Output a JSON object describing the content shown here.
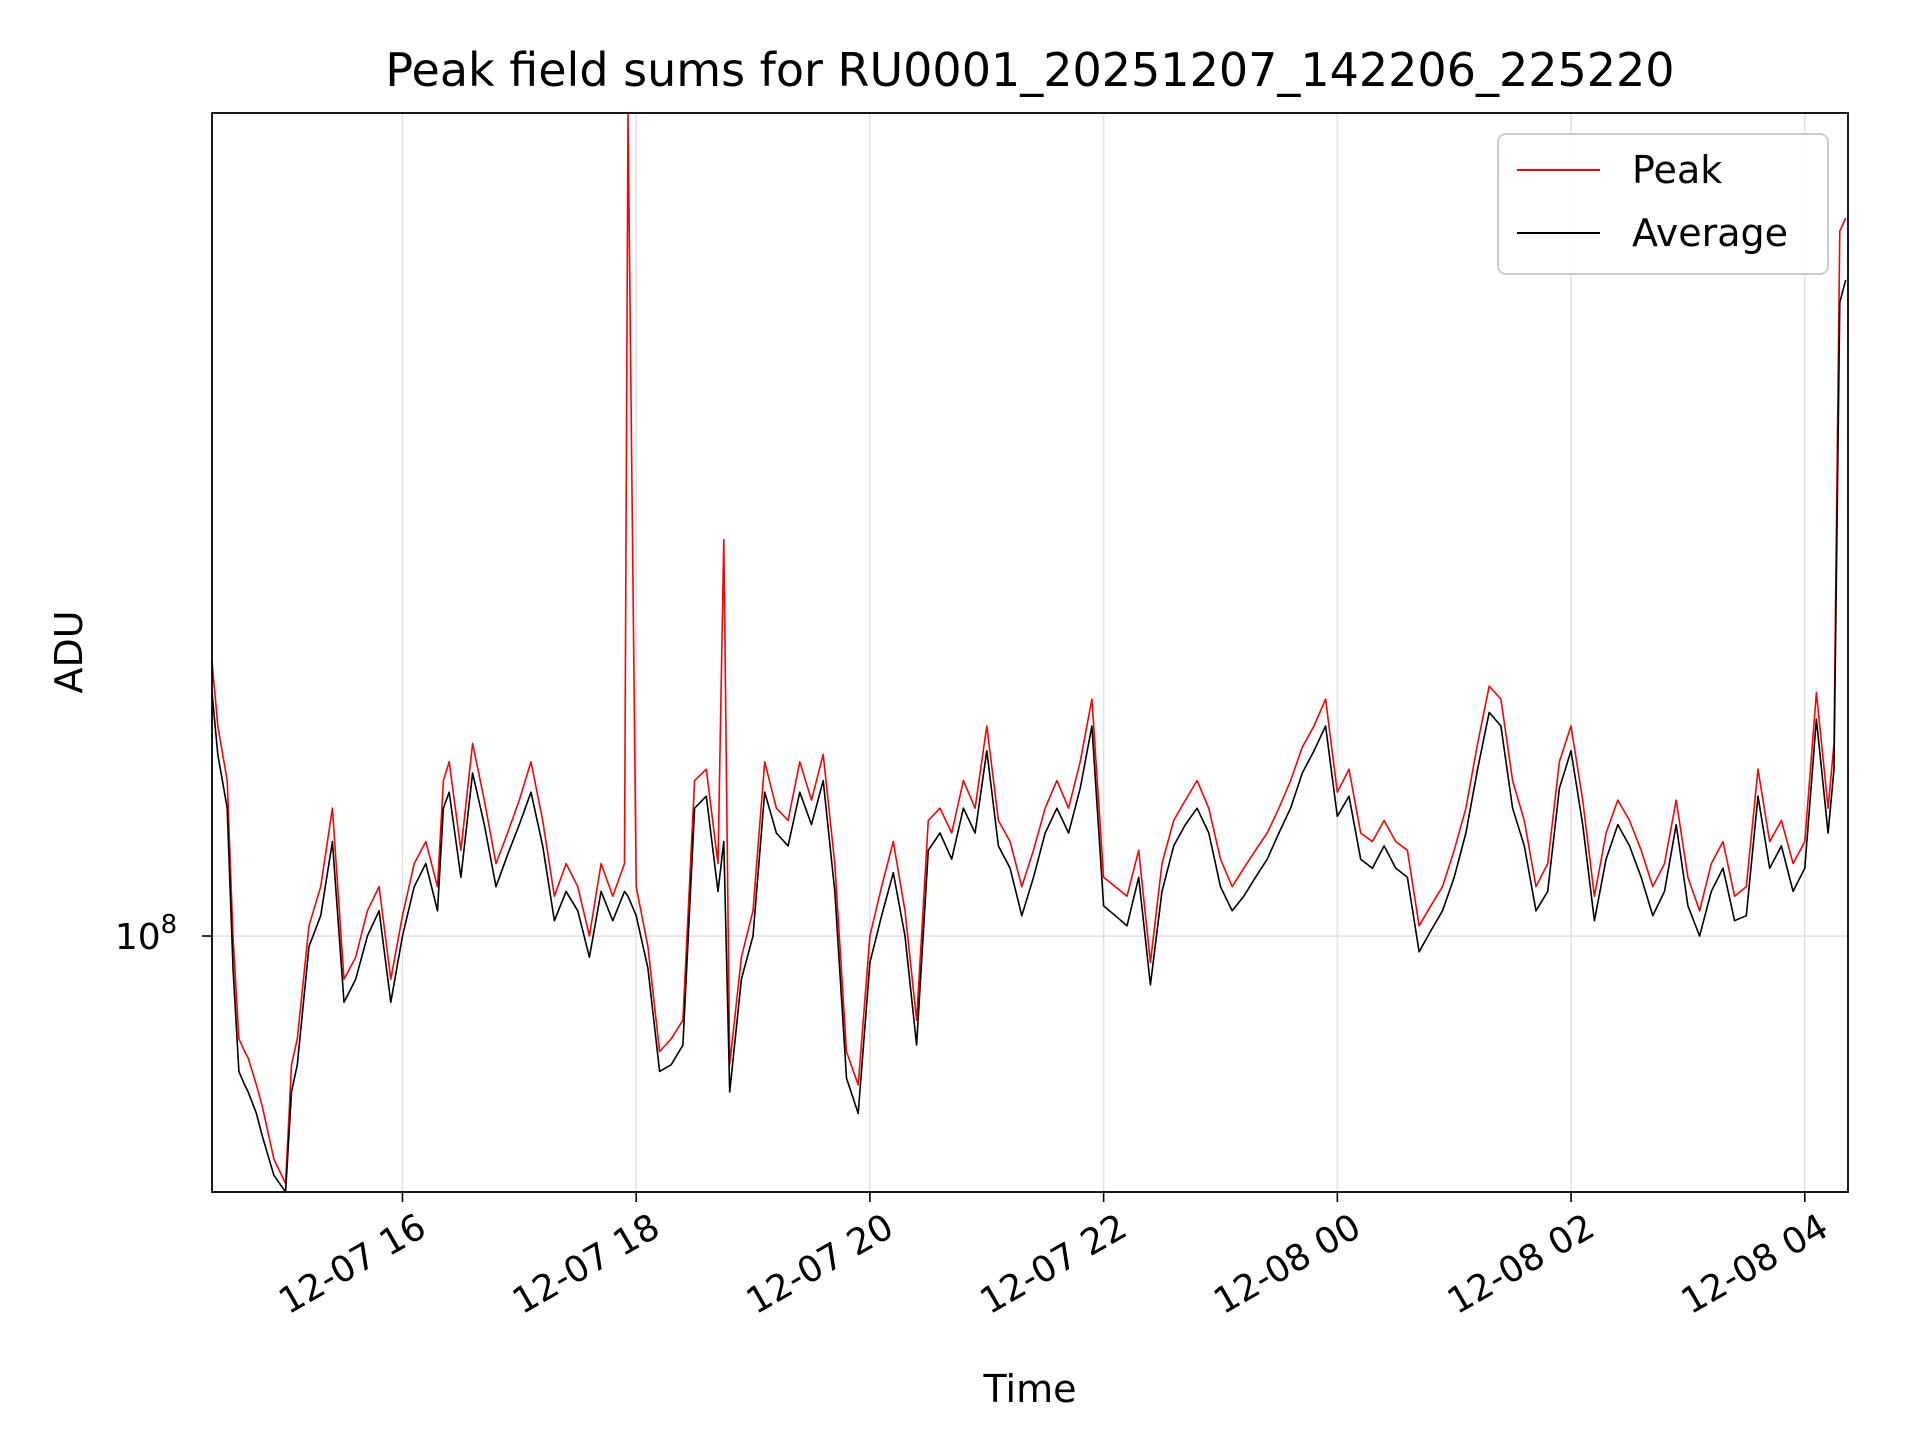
{
  "colors": {
    "peak": "#ff0000",
    "average": "#000000",
    "grid": "#e3e3e3"
  },
  "chart_data": {
    "type": "line",
    "title": "Peak field sums for RU0001_20251207_142206_225220",
    "xlabel": "Time",
    "ylabel": "ADU",
    "yscale": "log",
    "grid": true,
    "legend_position": "top-right",
    "x_unit": "hours since 12-07 00:00",
    "xlim": [
      14.37,
      28.37
    ],
    "ylim": [
      61000000,
      490000000
    ],
    "x_ticks": [
      {
        "value": 16,
        "label": "12-07 16"
      },
      {
        "value": 18,
        "label": "12-07 18"
      },
      {
        "value": 20,
        "label": "12-07 20"
      },
      {
        "value": 22,
        "label": "12-07 22"
      },
      {
        "value": 24,
        "label": "12-08 00"
      },
      {
        "value": 26,
        "label": "12-08 02"
      },
      {
        "value": 28,
        "label": "12-08 04"
      }
    ],
    "y_ticks": [
      {
        "value": 100000000,
        "base": "10",
        "exp": "8"
      }
    ],
    "series": [
      {
        "name": "Peak",
        "color": "#ff0000",
        "x": [
          14.37,
          14.42,
          14.5,
          14.55,
          14.6,
          14.65,
          14.68,
          14.75,
          14.8,
          14.9,
          15.0,
          15.05,
          15.1,
          15.2,
          15.3,
          15.4,
          15.5,
          15.6,
          15.7,
          15.8,
          15.9,
          16.0,
          16.1,
          16.2,
          16.3,
          16.35,
          16.4,
          16.5,
          16.6,
          16.7,
          16.8,
          16.9,
          17.0,
          17.1,
          17.2,
          17.3,
          17.4,
          17.5,
          17.6,
          17.7,
          17.8,
          17.9,
          17.93,
          18.0,
          18.1,
          18.2,
          18.3,
          18.4,
          18.5,
          18.6,
          18.7,
          18.75,
          18.8,
          18.9,
          19.0,
          19.1,
          19.2,
          19.3,
          19.4,
          19.5,
          19.6,
          19.7,
          19.8,
          19.9,
          20.0,
          20.1,
          20.2,
          20.3,
          20.4,
          20.5,
          20.6,
          20.7,
          20.8,
          20.9,
          21.0,
          21.1,
          21.2,
          21.3,
          21.4,
          21.5,
          21.6,
          21.7,
          21.8,
          21.9,
          22.0,
          22.1,
          22.2,
          22.3,
          22.4,
          22.5,
          22.6,
          22.7,
          22.8,
          22.9,
          23.0,
          23.1,
          23.2,
          23.3,
          23.4,
          23.5,
          23.6,
          23.7,
          23.8,
          23.9,
          24.0,
          24.1,
          24.2,
          24.3,
          24.4,
          24.5,
          24.6,
          24.7,
          24.8,
          24.9,
          25.0,
          25.1,
          25.2,
          25.3,
          25.4,
          25.5,
          25.6,
          25.7,
          25.8,
          25.9,
          26.0,
          26.1,
          26.2,
          26.3,
          26.4,
          26.5,
          26.6,
          26.7,
          26.8,
          26.9,
          27.0,
          27.1,
          27.2,
          27.3,
          27.4,
          27.5,
          27.6,
          27.7,
          27.8,
          27.9,
          28.0,
          28.1,
          28.2,
          28.25,
          28.3,
          28.35
        ],
        "values": [
          170000000,
          150000000,
          135000000,
          100000000,
          82000000,
          80000000,
          79000000,
          75000000,
          72000000,
          65000000,
          62000000,
          78000000,
          82000000,
          102000000,
          110000000,
          128000000,
          92000000,
          96000000,
          105000000,
          110000000,
          92000000,
          104000000,
          115000000,
          120000000,
          110000000,
          135000000,
          140000000,
          118000000,
          145000000,
          130000000,
          115000000,
          122000000,
          130000000,
          140000000,
          125000000,
          108000000,
          115000000,
          110000000,
          100000000,
          115000000,
          108000000,
          115000000,
          490000000,
          110000000,
          98000000,
          80000000,
          82000000,
          85000000,
          135000000,
          138000000,
          115000000,
          215000000,
          78000000,
          96000000,
          105000000,
          140000000,
          128000000,
          125000000,
          140000000,
          130000000,
          142000000,
          115000000,
          80000000,
          75000000,
          100000000,
          110000000,
          120000000,
          105000000,
          85000000,
          125000000,
          128000000,
          122000000,
          135000000,
          128000000,
          150000000,
          125000000,
          120000000,
          110000000,
          118000000,
          128000000,
          135000000,
          128000000,
          140000000,
          158000000,
          112000000,
          110000000,
          108000000,
          118000000,
          95000000,
          115000000,
          125000000,
          130000000,
          135000000,
          128000000,
          116000000,
          110000000,
          114000000,
          118000000,
          122000000,
          128000000,
          135000000,
          144000000,
          150000000,
          158000000,
          132000000,
          138000000,
          122000000,
          120000000,
          125000000,
          120000000,
          118000000,
          102000000,
          106000000,
          110000000,
          118000000,
          128000000,
          145000000,
          162000000,
          158000000,
          135000000,
          125000000,
          110000000,
          115000000,
          140000000,
          150000000,
          130000000,
          108000000,
          122000000,
          130000000,
          125000000,
          118000000,
          110000000,
          115000000,
          130000000,
          112000000,
          105000000,
          115000000,
          120000000,
          108000000,
          110000000,
          138000000,
          120000000,
          125000000,
          115000000,
          120000000,
          160000000,
          128000000,
          145000000,
          390000000,
          400000000
        ]
      },
      {
        "name": "Average",
        "color": "#000000",
        "x": [
          14.37,
          14.42,
          14.5,
          14.55,
          14.6,
          14.65,
          14.68,
          14.75,
          14.8,
          14.9,
          15.0,
          15.05,
          15.1,
          15.2,
          15.3,
          15.4,
          15.5,
          15.6,
          15.7,
          15.8,
          15.9,
          16.0,
          16.1,
          16.2,
          16.3,
          16.35,
          16.4,
          16.5,
          16.6,
          16.7,
          16.8,
          16.9,
          17.0,
          17.1,
          17.2,
          17.3,
          17.4,
          17.5,
          17.6,
          17.7,
          17.8,
          17.9,
          17.93,
          18.0,
          18.1,
          18.2,
          18.3,
          18.4,
          18.5,
          18.6,
          18.7,
          18.75,
          18.8,
          18.9,
          19.0,
          19.1,
          19.2,
          19.3,
          19.4,
          19.5,
          19.6,
          19.7,
          19.8,
          19.9,
          20.0,
          20.1,
          20.2,
          20.3,
          20.4,
          20.5,
          20.6,
          20.7,
          20.8,
          20.9,
          21.0,
          21.1,
          21.2,
          21.3,
          21.4,
          21.5,
          21.6,
          21.7,
          21.8,
          21.9,
          22.0,
          22.1,
          22.2,
          22.3,
          22.4,
          22.5,
          22.6,
          22.7,
          22.8,
          22.9,
          23.0,
          23.1,
          23.2,
          23.3,
          23.4,
          23.5,
          23.6,
          23.7,
          23.8,
          23.9,
          24.0,
          24.1,
          24.2,
          24.3,
          24.4,
          24.5,
          24.6,
          24.7,
          24.8,
          24.9,
          25.0,
          25.1,
          25.2,
          25.3,
          25.4,
          25.5,
          25.6,
          25.7,
          25.8,
          25.9,
          26.0,
          26.1,
          26.2,
          26.3,
          26.4,
          26.5,
          26.6,
          26.7,
          26.8,
          26.9,
          27.0,
          27.1,
          27.2,
          27.3,
          27.4,
          27.5,
          27.6,
          27.7,
          27.8,
          27.9,
          28.0,
          28.1,
          28.2,
          28.25,
          28.3,
          28.35
        ],
        "values": [
          160000000,
          142000000,
          128000000,
          94000000,
          77000000,
          75000000,
          74000000,
          71000000,
          68000000,
          63000000,
          61000000,
          74000000,
          78000000,
          98000000,
          104000000,
          120000000,
          88000000,
          92000000,
          100000000,
          105000000,
          88000000,
          100000000,
          110000000,
          115000000,
          105000000,
          128000000,
          132000000,
          112000000,
          137000000,
          124000000,
          110000000,
          117000000,
          124000000,
          132000000,
          119000000,
          103000000,
          109000000,
          105000000,
          96000000,
          109000000,
          103000000,
          109000000,
          108000000,
          104000000,
          94000000,
          77000000,
          78000000,
          81000000,
          128000000,
          131000000,
          109000000,
          120000000,
          74000000,
          92000000,
          100000000,
          132000000,
          122000000,
          119000000,
          132000000,
          124000000,
          135000000,
          109000000,
          76000000,
          71000000,
          95000000,
          104000000,
          113000000,
          100000000,
          81000000,
          118000000,
          122000000,
          116000000,
          128000000,
          122000000,
          143000000,
          119000000,
          114000000,
          104000000,
          112000000,
          122000000,
          128000000,
          122000000,
          133000000,
          150000000,
          106000000,
          104000000,
          102000000,
          112000000,
          91000000,
          109000000,
          119000000,
          124000000,
          128000000,
          122000000,
          110000000,
          105000000,
          108000000,
          112000000,
          116000000,
          122000000,
          128000000,
          137000000,
          143000000,
          150000000,
          126000000,
          131000000,
          116000000,
          114000000,
          119000000,
          114000000,
          112000000,
          97000000,
          101000000,
          105000000,
          112000000,
          122000000,
          138000000,
          154000000,
          150000000,
          128000000,
          119000000,
          105000000,
          109000000,
          133000000,
          143000000,
          124000000,
          103000000,
          116000000,
          124000000,
          119000000,
          112000000,
          104000000,
          109000000,
          124000000,
          106000000,
          100000000,
          109000000,
          114000000,
          103000000,
          104000000,
          131000000,
          114000000,
          119000000,
          109000000,
          114000000,
          152000000,
          122000000,
          138000000,
          340000000,
          355000000
        ]
      }
    ]
  }
}
